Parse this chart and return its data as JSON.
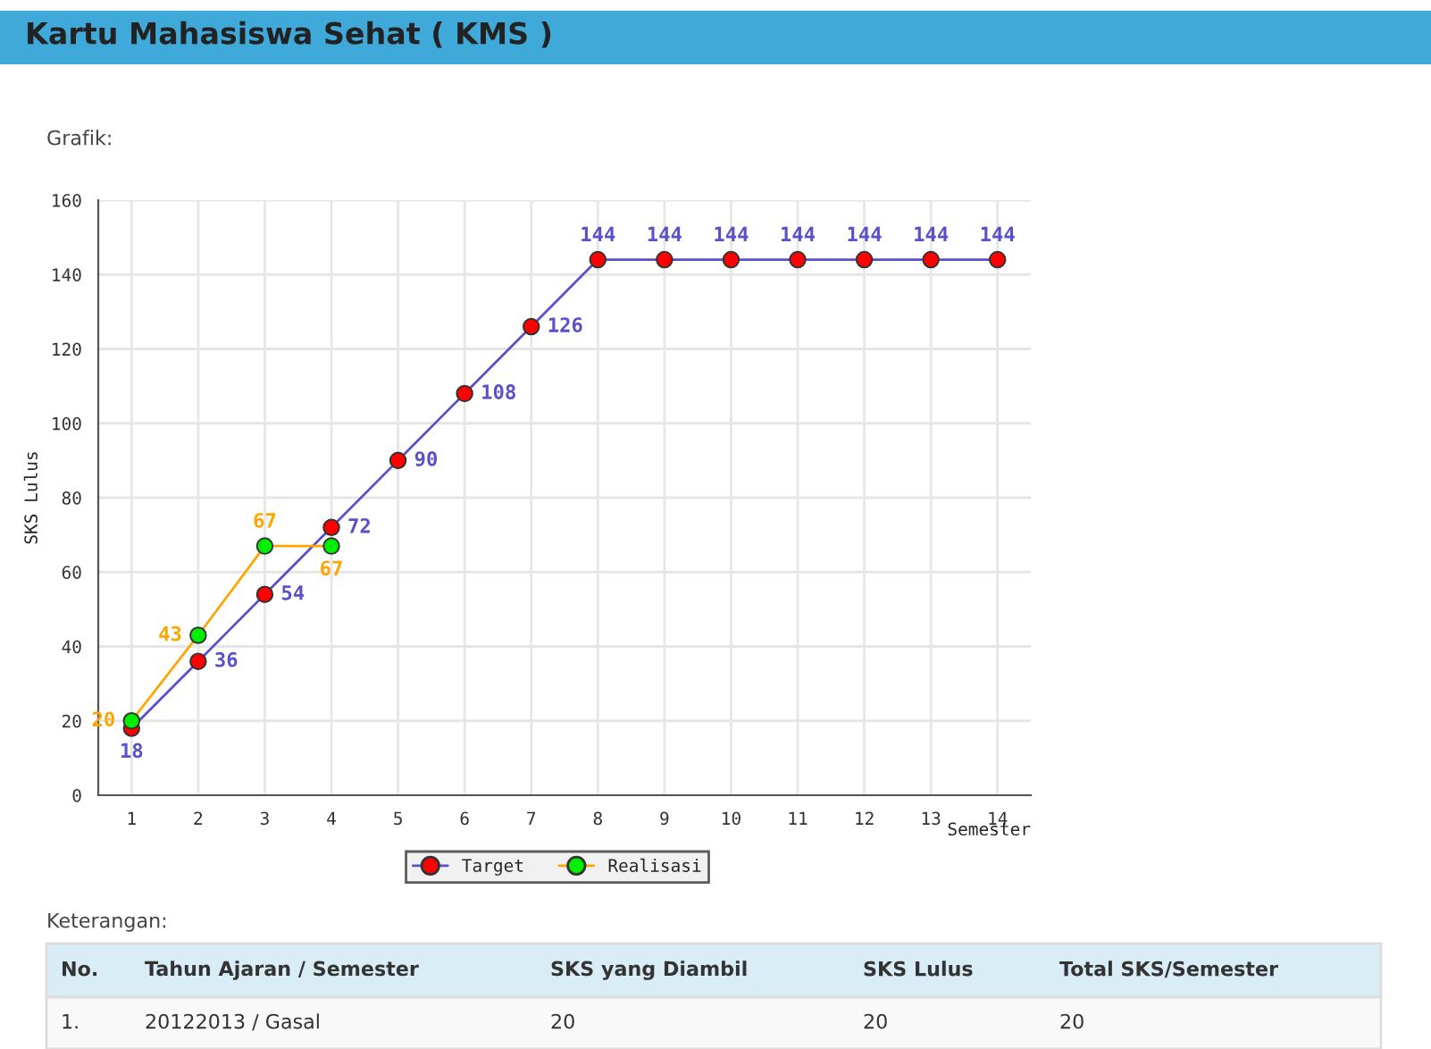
{
  "chart_data": {
    "type": "line",
    "title": "Kartu Mahasiswa Sehat ( KMS )",
    "subtitle": "Grafik:",
    "xlabel": "Semester",
    "ylabel": "SKS Lulus",
    "x": [
      1,
      2,
      3,
      4,
      5,
      6,
      7,
      8,
      9,
      10,
      11,
      12,
      13,
      14
    ],
    "series": [
      {
        "name": "Target",
        "color": "#5a50c8",
        "colors": [
          "#ff0000",
          "#ff0000",
          "#ff0000",
          "#ff0000",
          "#ff0000",
          "#ff0000",
          "#ff0000",
          "#ff0000",
          "#ff0000",
          "#ff0000",
          "#ff0000",
          "#ff0000",
          "#ff0000",
          "#ff0000"
        ],
        "values": [
          18,
          36,
          54,
          72,
          90,
          108,
          126,
          144,
          144,
          144,
          144,
          144,
          144,
          144
        ]
      },
      {
        "name": "Realisasi",
        "color": "#ffa500",
        "colors": [
          "#00ee00",
          "#00ee00",
          "#00ee00",
          "#00ee00",
          null,
          null,
          null,
          null,
          null,
          null,
          null,
          null,
          null,
          null
        ],
        "values": [
          20,
          43,
          67,
          67,
          null,
          null,
          null,
          null,
          null,
          null,
          null,
          null,
          null,
          null
        ]
      }
    ],
    "data_labels": true,
    "marker": "circle",
    "line_style": "solid",
    "grid": true,
    "legend": "bottom",
    "xlim": [
      0.5,
      14.5
    ],
    "xticks": [
      1,
      2,
      3,
      4,
      5,
      6,
      7,
      8,
      9,
      10,
      11,
      12,
      13,
      14
    ],
    "ylim": [
      0,
      160
    ],
    "yticks": [
      0,
      20,
      40,
      60,
      80,
      100,
      120,
      140,
      160
    ],
    "annotations": [
      "Keterangan:",
      "No.",
      "Tahun Ajaran / Semester",
      "SKS yang Diambil",
      "SKS Lulus",
      "Total SKS/Semester",
      "1.",
      "20122013 / Gasal",
      "20",
      "20",
      "20"
    ]
  }
}
